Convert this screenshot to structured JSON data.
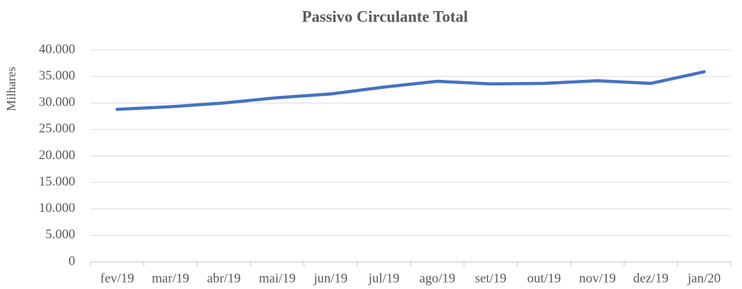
{
  "chart_data": {
    "type": "line",
    "title": "Passivo Circulante Total",
    "y_label": "Milhares",
    "categories": [
      "fev/19",
      "mar/19",
      "abr/19",
      "mai/19",
      "jun/19",
      "jul/19",
      "ago/19",
      "set/19",
      "out/19",
      "nov/19",
      "dez/19",
      "jan/20"
    ],
    "series": [
      {
        "name": "Passivo Circulante Total",
        "color": "#4472c4",
        "values": [
          28800,
          29300,
          30000,
          31000,
          31700,
          33000,
          34100,
          33600,
          33700,
          34200,
          33700,
          35900
        ]
      }
    ],
    "ylim": [
      0,
      40000
    ],
    "yticks": [
      0,
      {
        "value": 5000,
        "label": "5.000"
      },
      {
        "value": 10000,
        "label": "10.000"
      },
      {
        "value": 15000,
        "label": "15.000"
      },
      {
        "value": 20000,
        "label": "20.000"
      },
      {
        "value": 25000,
        "label": "25.000"
      },
      {
        "value": 30000,
        "label": "30.000"
      },
      {
        "value": 35000,
        "label": "35.000"
      },
      {
        "value": 40000,
        "label": "40.000"
      }
    ],
    "grid": true,
    "legend": false
  }
}
